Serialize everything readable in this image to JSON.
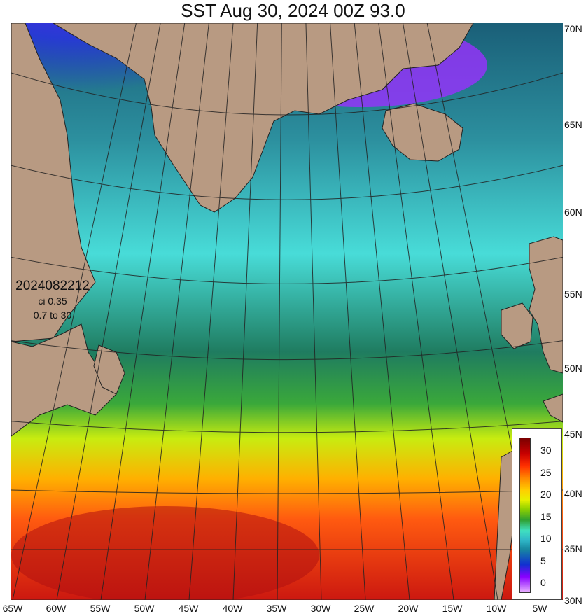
{
  "title": "SST Aug 30, 2024 00Z 93.0",
  "stamp": {
    "date": "2024082212",
    "ci": "ci 0.35",
    "range": "0.7 to 30"
  },
  "lat_labels": [
    "70N",
    "65N",
    "60N",
    "55N",
    "50N",
    "45N",
    "40N",
    "35N",
    "30N"
  ],
  "lon_labels": [
    "65W",
    "60W",
    "55W",
    "50W",
    "45W",
    "40W",
    "35W",
    "30W",
    "25W",
    "20W",
    "15W",
    "10W",
    "5W"
  ],
  "colorbar": {
    "ticks": [
      "30",
      "25",
      "20",
      "15",
      "10",
      "5",
      "0"
    ]
  },
  "colors": {
    "land": "#b89a82",
    "grid": "#222222"
  }
}
